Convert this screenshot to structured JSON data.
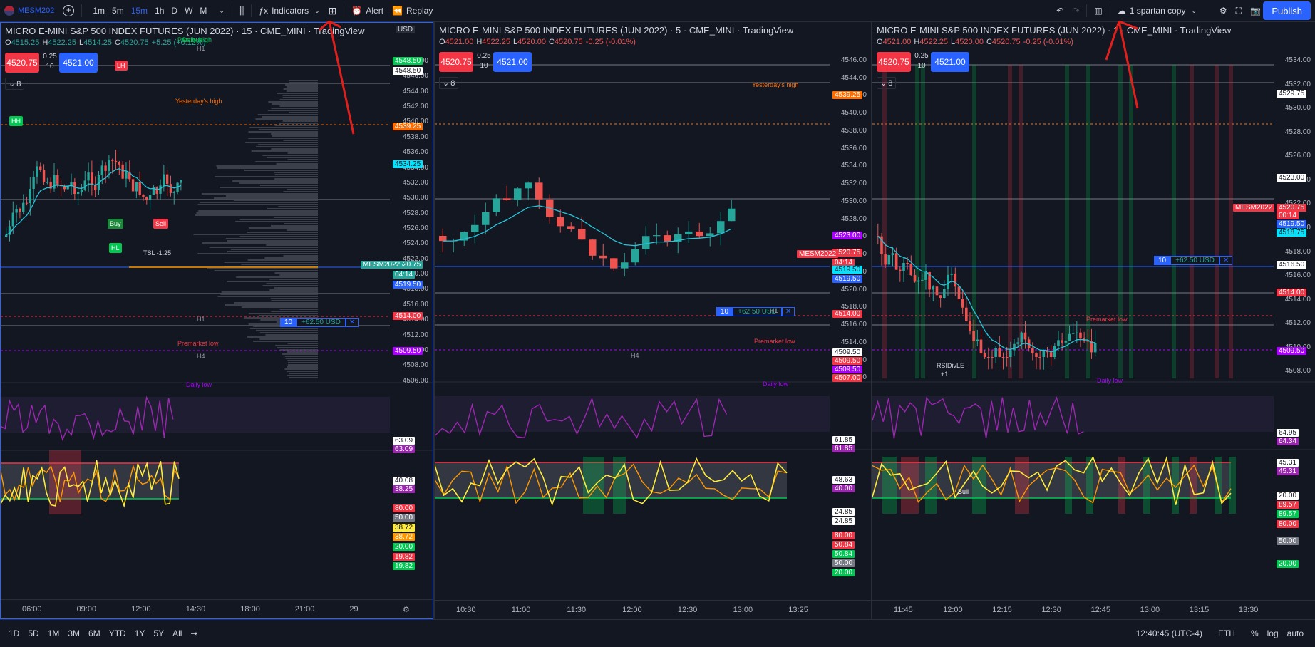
{
  "topbar": {
    "symbol": "MESM202",
    "timeframes": [
      "1m",
      "5m",
      "15m",
      "1h",
      "D",
      "W",
      "M"
    ],
    "active_timeframe": "15m",
    "indicators_label": "Indicators",
    "alert_label": "Alert",
    "replay_label": "Replay",
    "layout_name": "1 spartan copy",
    "publish_label": "Publish"
  },
  "panels": [
    {
      "title": "MICRO E-MINI S&P 500 INDEX FUTURES (JUN 2022) · 15 · CME_MINI · TradingView",
      "ohlc": {
        "o": "4515.25",
        "h": "4522.25",
        "l": "4514.25",
        "c": "4520.75",
        "chg": "+5.25 (+0.12%)"
      },
      "sell_price": "4520.75",
      "buy_price": "4521.00",
      "spread_top": "0.25",
      "spread_qty": "10",
      "bar_count": "8",
      "currency": "USD",
      "prices": [
        "4548.00",
        "4546.00",
        "4544.00",
        "4542.00",
        "4540.00",
        "4538.00",
        "4536.00",
        "4534.00",
        "4532.00",
        "4530.00",
        "4528.00",
        "4526.00",
        "4524.00",
        "4522.00",
        "4520.00",
        "4518.00",
        "4516.00",
        "4514.00",
        "4512.00",
        "4510.00",
        "4508.00",
        "4506.00"
      ],
      "tags": [
        {
          "text": "4548.50",
          "color": "#00c853"
        },
        {
          "text": "4548.50",
          "color": "#ffffff"
        },
        {
          "text": "4539.25",
          "color": "#ff6d00"
        },
        {
          "text": "4534.25",
          "color": "#00e5ff"
        },
        {
          "text": "4520.75",
          "color": "#26a69a"
        },
        {
          "text": "04:14",
          "color": "#26a69a"
        },
        {
          "text": "4519.50",
          "color": "#2962ff"
        },
        {
          "text": "4514.00",
          "color": "#f23645"
        },
        {
          "text": "4509.50",
          "color": "#aa00ff"
        }
      ],
      "symbol_tag": "MESM2022",
      "position": {
        "qty": "10",
        "pnl": "+62.50 USD"
      },
      "line_labels": {
        "daily_high": "Daily High",
        "prev_day": "Previous",
        "yesterday_high": "Yesterday's high",
        "h1a": "H1",
        "h1b": "H1",
        "h4": "H4",
        "premarket_low": "Premarket low",
        "daily_low": "Daily low"
      },
      "signals": {
        "hh": "HH",
        "lh": "LH",
        "hl": "HL",
        "buy": "Buy",
        "tsl": "TSL -1.25",
        "sell_mark": "Sell"
      },
      "rsi_vals": [
        "63.09",
        "63.09",
        "40.08",
        "38.25"
      ],
      "osc_vals": [
        {
          "text": "80.00",
          "color": "#f23645"
        },
        {
          "text": "50.00",
          "color": "#787b86"
        },
        {
          "text": "38.72",
          "color": "#ffeb3b"
        },
        {
          "text": "38.72",
          "color": "#ff9800"
        },
        {
          "text": "20.00",
          "color": "#00c853"
        },
        {
          "text": "19.82",
          "color": "#f23645"
        },
        {
          "text": "19.82",
          "color": "#00c853"
        }
      ],
      "times": [
        "06:00",
        "09:00",
        "12:00",
        "14:30",
        "18:00",
        "21:00",
        "29"
      ]
    },
    {
      "title": "MICRO E-MINI S&P 500 INDEX FUTURES (JUN 2022) · 5 · CME_MINI · TradingView",
      "ohlc": {
        "o": "4521.00",
        "h": "4522.25",
        "l": "4520.00",
        "c": "4520.75",
        "chg": "-0.25 (-0.01%)"
      },
      "sell_price": "4520.75",
      "buy_price": "4521.00",
      "spread_top": "0.25",
      "spread_qty": "10",
      "bar_count": "8",
      "prices": [
        "4546.00",
        "4544.00",
        "4542.00",
        "4540.00",
        "4538.00",
        "4536.00",
        "4534.00",
        "4532.00",
        "4530.00",
        "4528.00",
        "4526.00",
        "4524.00",
        "4522.00",
        "4520.00",
        "4518.00",
        "4516.00",
        "4514.00",
        "4512.00",
        "4510.00"
      ],
      "tags": [
        {
          "text": "4539.25",
          "color": "#ff6d00"
        },
        {
          "text": "4523.00",
          "color": "#aa00ff"
        },
        {
          "text": "4520.75",
          "color": "#f23645"
        },
        {
          "text": "04:14",
          "color": "#f23645"
        },
        {
          "text": "4519.50",
          "color": "#00e5ff"
        },
        {
          "text": "4519.50",
          "color": "#2962ff"
        },
        {
          "text": "4514.00",
          "color": "#f23645"
        },
        {
          "text": "4509.50",
          "color": "#ffffff"
        },
        {
          "text": "4509.50",
          "color": "#f23645"
        },
        {
          "text": "4509.50",
          "color": "#aa00ff"
        },
        {
          "text": "4507.00",
          "color": "#f23645"
        }
      ],
      "symbol_tag": "MESM2022",
      "position": {
        "qty": "10",
        "pnl": "+62.50 USD"
      },
      "line_labels": {
        "yesterday_high": "Yesterday's high",
        "h1": "H1",
        "h4": "H4",
        "premarket_low": "Premarket low",
        "daily_low": "Daily low",
        "top_h1": "H1"
      },
      "rsi_vals": [
        "61.85",
        "61.85",
        "48.63",
        "40.00"
      ],
      "osc_vals": [
        {
          "text": "24.85",
          "color": "#ffffff"
        },
        {
          "text": "24.85",
          "color": "#ffffff"
        },
        {
          "text": "80.00",
          "color": "#f23645"
        },
        {
          "text": "50.84",
          "color": "#f23645"
        },
        {
          "text": "50.84",
          "color": "#00c853"
        },
        {
          "text": "50.00",
          "color": "#787b86"
        },
        {
          "text": "20.00",
          "color": "#00c853"
        }
      ],
      "times": [
        "10:30",
        "11:00",
        "11:30",
        "12:00",
        "12:30",
        "13:00",
        "13:25"
      ]
    },
    {
      "title": "MICRO E-MINI S&P 500 INDEX FUTURES (JUN 2022) · 1 · CME_MINI · TradingView",
      "ohlc": {
        "o": "4521.00",
        "h": "4522.25",
        "l": "4520.00",
        "c": "4520.75",
        "chg": "-0.25 (-0.01%)"
      },
      "sell_price": "4520.75",
      "buy_price": "4521.00",
      "spread_top": "0.25",
      "spread_qty": "10",
      "bar_count": "8",
      "prices": [
        "4534.00",
        "4532.00",
        "4530.00",
        "4528.00",
        "4526.00",
        "4524.00",
        "4522.00",
        "4520.00",
        "4518.00",
        "4516.00",
        "4514.00",
        "4512.00",
        "4510.00",
        "4508.00"
      ],
      "tags": [
        {
          "text": "4529.75",
          "color": "#ffffff"
        },
        {
          "text": "4523.00",
          "color": "#ffffff"
        },
        {
          "text": "4520.75",
          "color": "#f23645"
        },
        {
          "text": "00:14",
          "color": "#f23645"
        },
        {
          "text": "4519.50",
          "color": "#2962ff"
        },
        {
          "text": "4518.75",
          "color": "#00e5ff"
        },
        {
          "text": "4516.50",
          "color": "#ffffff"
        },
        {
          "text": "4514.00",
          "color": "#f23645"
        },
        {
          "text": "4509.50",
          "color": "#aa00ff"
        }
      ],
      "symbol_tag": "MESM2022",
      "position": {
        "qty": "10",
        "pnl": "+62.50 USD"
      },
      "line_labels": {
        "premarket_low": "Premarket low",
        "daily_low": "Daily low",
        "rsidivle": "RSIDivLE",
        "rsidiv_n": "+1",
        "bull": "Bull"
      },
      "rsi_vals": [
        "64.95",
        "64.34",
        "45.31",
        "45.31",
        "20.00"
      ],
      "osc_vals": [
        {
          "text": "89.57",
          "color": "#f23645"
        },
        {
          "text": "89.57",
          "color": "#00c853"
        },
        {
          "text": "80.00",
          "color": "#f23645"
        },
        {
          "text": "50.00",
          "color": "#787b86"
        },
        {
          "text": "20.00",
          "color": "#00c853"
        }
      ],
      "times": [
        "11:45",
        "12:00",
        "12:15",
        "12:30",
        "12:45",
        "13:00",
        "13:15",
        "13:30"
      ]
    }
  ],
  "bottombar": {
    "ranges": [
      "1D",
      "5D",
      "1M",
      "3M",
      "6M",
      "YTD",
      "1Y",
      "5Y",
      "All"
    ],
    "clock": "12:40:45 (UTC-4)",
    "session": "ETH",
    "pct": "%",
    "log": "log",
    "auto": "auto"
  },
  "colors": {
    "bg": "#131722",
    "up": "#26a69a",
    "down": "#ef5350",
    "accent": "#2962ff",
    "ema": "#26c6da",
    "rsi": "#9c27b0",
    "osc_fast": "#ffeb3b",
    "osc_slow": "#ff9800"
  }
}
